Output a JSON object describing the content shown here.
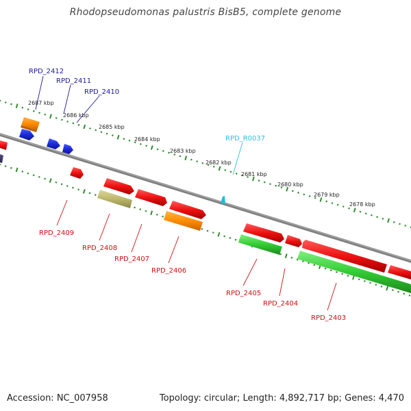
{
  "title": "Rhodopseudomonas palustris BisB5, complete genome",
  "footer": {
    "accession": "Accession: NC_007958",
    "summary": "Topology: circular; Length: 4,892,717 bp; Genes: 4,470"
  },
  "colors": {
    "backbone": "#808080",
    "scale_ticks": "#2f8a2f",
    "red_gene": "#ee1111",
    "blue_gene": "#1a2bd8",
    "orange_gene": "#ff8c00",
    "green_gene": "#33cc33",
    "khaki_gene": "#bdb76b",
    "navy_gene": "#333366",
    "cyan_gene": "#22bbdd",
    "blue_label": "#1a1a99",
    "red_label": "#cc1111",
    "cyan_label": "#33bbdd"
  },
  "scale_labels": [
    "2687 kbp",
    "2686 kbp",
    "2685 kbp",
    "2684 kbp",
    "2683 kbp",
    "2682 kbp",
    "2681 kbp",
    "2680 kbp",
    "2679 kbp",
    "2678 kbp"
  ],
  "gene_labels": [
    "RPD_2412",
    "RPD_2411",
    "RPD_2410",
    "RPD_R0037",
    "RPD_2409",
    "RPD_2408",
    "RPD_2407",
    "RPD_2406",
    "RPD_2405",
    "RPD_2404",
    "RPD_2403"
  ]
}
